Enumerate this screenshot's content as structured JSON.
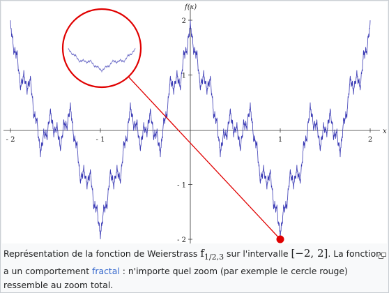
{
  "chart_data": {
    "type": "line",
    "function": "Weierstrass f_{1/2,3}",
    "xlabel": "x",
    "ylabel": "f(x)",
    "xlim": [
      -2,
      2
    ],
    "ylim": [
      -2,
      2
    ],
    "x_ticks": [
      "- 2",
      "- 1",
      "1",
      "2"
    ],
    "y_ticks": [
      "2",
      "1",
      "- 1",
      "- 2"
    ],
    "series": [
      {
        "color": "#3a3ab4",
        "formula": "sum_{n>=0} (1/2)^n cos(3^n * pi * x)",
        "x_range": [
          -2,
          2
        ]
      }
    ],
    "zoom_point": {
      "x": 1,
      "y": -2
    },
    "zoom_color": "#e00000"
  },
  "caption": {
    "part1": "Représentation de la fonction de Weierstrass ",
    "func": "f",
    "func_sub": "1/2,3",
    "part2": " sur l'intervalle ",
    "interval": "[−2, 2]",
    "part3": ". La fonction a un comportement ",
    "link": "fractal",
    "part4": " : n'importe quel zoom (par exemple le cercle rouge) ressemble au zoom total."
  },
  "icons": {
    "enlarge": "enlarge-icon"
  }
}
